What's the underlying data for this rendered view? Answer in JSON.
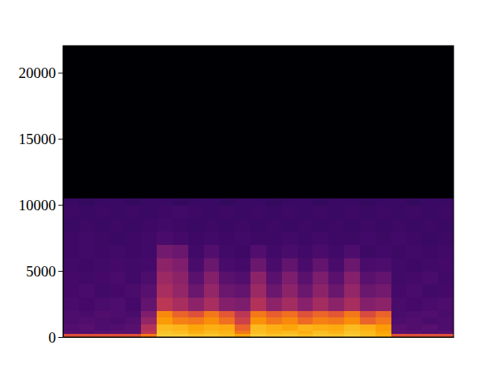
{
  "chart_data": {
    "type": "heatmap",
    "xlim": [
      0,
      25
    ],
    "ylim": [
      0,
      22050
    ],
    "yticks": [
      0,
      5000,
      10000,
      15000,
      20000
    ],
    "tick_labels": "y",
    "zlim": [
      -100,
      0
    ],
    "x_edges": [
      0,
      1,
      2,
      3,
      4,
      5,
      6,
      7,
      8,
      9,
      10,
      11,
      12,
      13,
      14,
      15,
      16,
      17,
      18,
      19,
      20,
      21,
      22,
      23,
      24,
      25
    ],
    "y_edges": [
      0,
      250,
      500,
      1000,
      1500,
      2000,
      3000,
      4000,
      5000,
      6000,
      7000,
      8000,
      9000,
      10000,
      10500,
      22050
    ],
    "cells": [
      [
        -40,
        -40,
        -40,
        -40,
        -40,
        -30,
        -12,
        -12,
        -14,
        -13,
        -15,
        -20,
        -12,
        -14,
        -13,
        -15,
        -13,
        -14,
        -12,
        -15,
        -18,
        -40,
        -40,
        -40,
        -40
      ],
      [
        -75,
        -76,
        -75,
        -74,
        -75,
        -50,
        -14,
        -15,
        -18,
        -16,
        -17,
        -30,
        -15,
        -17,
        -16,
        -18,
        -15,
        -17,
        -14,
        -16,
        -20,
        -74,
        -75,
        -76,
        -75
      ],
      [
        -76,
        -75,
        -77,
        -76,
        -75,
        -52,
        -16,
        -17,
        -20,
        -18,
        -19,
        -35,
        -16,
        -18,
        -20,
        -17,
        -18,
        -19,
        -16,
        -18,
        -22,
        -75,
        -76,
        -75,
        -77
      ],
      [
        -77,
        -76,
        -77,
        -78,
        -76,
        -60,
        -22,
        -28,
        -30,
        -25,
        -32,
        -45,
        -24,
        -30,
        -26,
        -33,
        -28,
        -30,
        -25,
        -35,
        -30,
        -77,
        -76,
        -78,
        -77
      ],
      [
        -77,
        -78,
        -76,
        -77,
        -78,
        -65,
        -26,
        -35,
        -40,
        -30,
        -38,
        -50,
        -30,
        -36,
        -32,
        -40,
        -34,
        -38,
        -30,
        -42,
        -35,
        -78,
        -77,
        -76,
        -78
      ],
      [
        -78,
        -79,
        -78,
        -77,
        -79,
        -72,
        -50,
        -55,
        -62,
        -55,
        -64,
        -66,
        -52,
        -62,
        -56,
        -63,
        -56,
        -62,
        -55,
        -64,
        -62,
        -78,
        -79,
        -78,
        -77
      ],
      [
        -79,
        -78,
        -80,
        -79,
        -78,
        -75,
        -55,
        -60,
        -70,
        -60,
        -70,
        -72,
        -58,
        -70,
        -62,
        -70,
        -62,
        -70,
        -60,
        -70,
        -68,
        -79,
        -78,
        -80,
        -79
      ],
      [
        -79,
        -80,
        -79,
        -78,
        -80,
        -77,
        -58,
        -62,
        -74,
        -64,
        -74,
        -76,
        -62,
        -74,
        -66,
        -74,
        -66,
        -74,
        -64,
        -74,
        -72,
        -80,
        -79,
        -78,
        -80
      ],
      [
        -80,
        -81,
        -80,
        -79,
        -80,
        -79,
        -62,
        -65,
        -78,
        -70,
        -78,
        -79,
        -70,
        -78,
        -72,
        -78,
        -72,
        -78,
        -70,
        -78,
        -77,
        -80,
        -81,
        -80,
        -79
      ],
      [
        -81,
        -80,
        -81,
        -80,
        -81,
        -80,
        -68,
        -70,
        -80,
        -76,
        -80,
        -81,
        -76,
        -80,
        -78,
        -80,
        -78,
        -80,
        -77,
        -81,
        -80,
        -81,
        -80,
        -81,
        -80
      ],
      [
        -81,
        -80,
        -81,
        -82,
        -81,
        -80,
        -78,
        -79,
        -81,
        -80,
        -81,
        -80,
        -81,
        -81,
        -80,
        -81,
        -80,
        -81,
        -81,
        -80,
        -81,
        -80,
        -81,
        -82,
        -81
      ],
      [
        -82,
        -81,
        -82,
        -81,
        -82,
        -81,
        -80,
        -81,
        -82,
        -81,
        -82,
        -81,
        -82,
        -81,
        -82,
        -81,
        -82,
        -81,
        -82,
        -81,
        -82,
        -81,
        -82,
        -81,
        -82
      ],
      [
        -81,
        -82,
        -81,
        -82,
        -81,
        -82,
        -81,
        -80,
        -81,
        -82,
        -81,
        -82,
        -81,
        -82,
        -81,
        -82,
        -81,
        -82,
        -81,
        -82,
        -81,
        -82,
        -81,
        -82,
        -81
      ],
      [
        -82,
        -83,
        -82,
        -82,
        -83,
        -82,
        -82,
        -83,
        -82,
        -82,
        -83,
        -82,
        -82,
        -83,
        -82,
        -82,
        -83,
        -82,
        -82,
        -83,
        -82,
        -82,
        -83,
        -82,
        -82
      ],
      [
        -100,
        -100,
        -100,
        -100,
        -100,
        -100,
        -100,
        -100,
        -100,
        -100,
        -100,
        -100,
        -100,
        -100,
        -100,
        -100,
        -100,
        -100,
        -100,
        -100,
        -100,
        -100,
        -100,
        -100,
        -100
      ]
    ]
  }
}
